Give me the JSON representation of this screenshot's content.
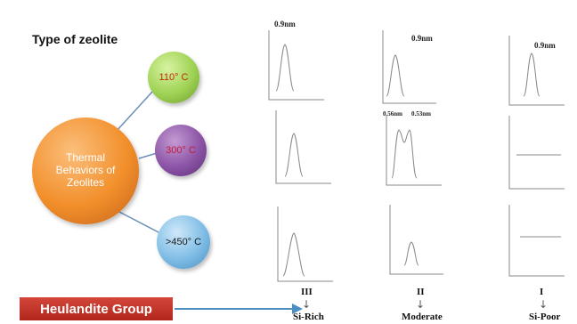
{
  "title": "Type of zeolite",
  "center_label": "Thermal Behaviors of Zeolites",
  "temperatures": [
    "110° C",
    "300° C",
    ">450° C"
  ],
  "group_label": "Heulandite Group",
  "columns": [
    {
      "roman": "III",
      "class": "Si-Rich"
    },
    {
      "roman": "II",
      "class": "Moderate"
    },
    {
      "roman": "I",
      "class": "Si-Poor"
    }
  ],
  "peak_labels": {
    "rich_110": "0.9nm",
    "moderate_110": "0.9nm",
    "poor_110": "0.9nm",
    "moderate_300_a": "0.56nm",
    "moderate_300_b": "0.53nm"
  },
  "colors": {
    "main": "#f28f2b",
    "t110": "#9fd254",
    "t300": "#8c54a6",
    "t450": "#7fbde6",
    "group": "#c0392b",
    "arrow": "#4a8fc0"
  }
}
